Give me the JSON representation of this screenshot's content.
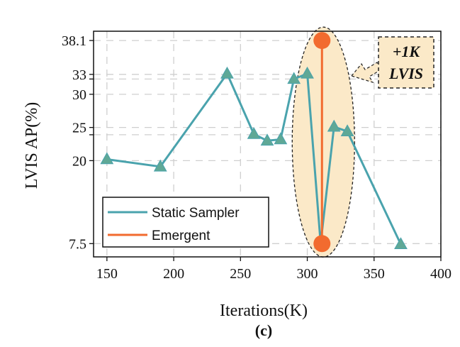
{
  "chart_data": {
    "type": "line",
    "caption": "(c)",
    "xlabel": "Iterations(K)",
    "ylabel": "LVIS AP(%)",
    "xlim": [
      140,
      400
    ],
    "x_ticks": [
      150,
      200,
      250,
      300,
      350,
      400
    ],
    "ylim": [
      5.5,
      39.5
    ],
    "y_ticks": [
      7.5,
      20,
      25,
      30,
      33,
      38.1
    ],
    "y_gridlines": [
      7.5,
      20,
      23.9,
      25,
      30,
      32.3,
      33,
      38.1
    ],
    "grid": true,
    "series": [
      {
        "name": "Static Sampler",
        "color": "#4aa3ad",
        "marker": "triangle",
        "x": [
          150,
          190,
          240,
          260,
          270,
          280,
          290,
          300,
          310,
          320,
          330,
          370
        ],
        "y": [
          20.2,
          19.1,
          33.1,
          24.0,
          23.0,
          23.2,
          32.3,
          33.1,
          7.5,
          25.1,
          24.4,
          7.4
        ]
      },
      {
        "name": "Emergent",
        "color": "#f26b2f",
        "marker": "circle",
        "x": [
          311,
          311
        ],
        "y": [
          38.1,
          7.5
        ]
      }
    ],
    "legend": {
      "position": "bottom-left",
      "entries": [
        "Static Sampler",
        "Emergent"
      ]
    },
    "annotation": {
      "line1": "+1K",
      "line2": "LVIS",
      "box_color": "#fbe9c8",
      "ellipse_color": "#fbe9c8"
    }
  }
}
